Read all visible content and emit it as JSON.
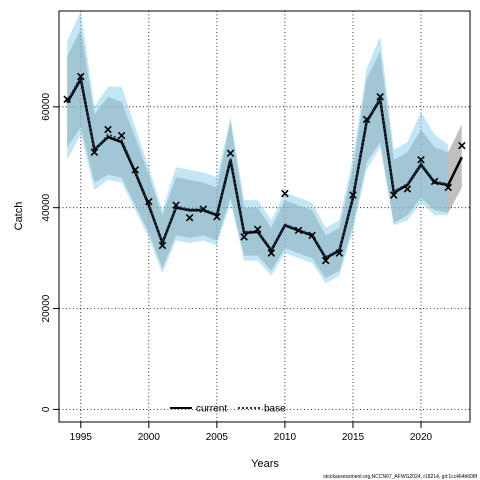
{
  "chart_data": {
    "type": "line",
    "xlabel": "Years",
    "ylabel": "Catch",
    "xlim": [
      1993.4,
      2023.6
    ],
    "ylim": [
      -2500,
      79000
    ],
    "x_ticks": [
      1995,
      2000,
      2005,
      2010,
      2015,
      2020
    ],
    "y_ticks": [
      0,
      20000,
      40000,
      60000
    ],
    "grid": true,
    "legend_position": "bottom-left",
    "legend": [
      {
        "label": "current",
        "style": "solid",
        "color": "#000000"
      },
      {
        "label": "base",
        "style": "dotted",
        "color": "#1a3a5a"
      }
    ],
    "colors": {
      "current_band": "#808080",
      "base_band": "#87ceeb",
      "base_line": "#1a3a5a",
      "current_line": "#000000"
    },
    "observed": {
      "marker": "x",
      "x": [
        1994,
        1995,
        1996,
        1997,
        1998,
        1999,
        2000,
        2001,
        2002,
        2003,
        2004,
        2005,
        2006,
        2007,
        2008,
        2009,
        2010,
        2011,
        2012,
        2013,
        2014,
        2015,
        2016,
        2017,
        2018,
        2019,
        2020,
        2021,
        2022,
        2023
      ],
      "y": [
        61500,
        66000,
        51000,
        55500,
        54300,
        47500,
        41200,
        32500,
        40500,
        38000,
        39700,
        38200,
        50800,
        34200,
        35700,
        31000,
        42800,
        35500,
        34500,
        29500,
        31000,
        42500,
        57500,
        62000,
        42500,
        43700,
        49500,
        45200,
        44000,
        52300
      ]
    },
    "series": [
      {
        "name": "current",
        "x": [
          1994,
          1995,
          1996,
          1997,
          1998,
          1999,
          2000,
          2001,
          2002,
          2003,
          2004,
          2005,
          2006,
          2007,
          2008,
          2009,
          2010,
          2011,
          2012,
          2013,
          2014,
          2015,
          2016,
          2017,
          2018,
          2019,
          2020,
          2021,
          2022,
          2023
        ],
        "y": [
          60800,
          65500,
          51500,
          54000,
          53000,
          47000,
          40500,
          33000,
          40000,
          39500,
          39500,
          38500,
          49500,
          35000,
          35200,
          31500,
          36500,
          35500,
          34500,
          30000,
          31500,
          42000,
          57000,
          61500,
          43000,
          44500,
          48500,
          45000,
          44500,
          50000
        ],
        "lower": [
          52000,
          56000,
          45000,
          46500,
          46000,
          40500,
          35000,
          28000,
          34500,
          34000,
          34500,
          33500,
          42000,
          30500,
          30500,
          27500,
          32000,
          31000,
          30000,
          26000,
          27500,
          36500,
          49000,
          53000,
          37000,
          38500,
          42000,
          39500,
          39000,
          44000
        ],
        "upper": [
          70000,
          75500,
          58500,
          62000,
          61000,
          54000,
          46500,
          38500,
          46000,
          45500,
          45000,
          44000,
          57000,
          40000,
          40000,
          36000,
          41500,
          40500,
          39500,
          34500,
          36000,
          48000,
          65500,
          71000,
          49500,
          51000,
          55500,
          52000,
          51000,
          56500
        ]
      },
      {
        "name": "base",
        "x": [
          1994,
          1995,
          1996,
          1997,
          1998,
          1999,
          2000,
          2001,
          2002,
          2003,
          2004,
          2005,
          2006,
          2007,
          2008,
          2009,
          2010,
          2011,
          2012,
          2013,
          2014,
          2015,
          2016,
          2017,
          2018,
          2019,
          2020,
          2021,
          2022
        ],
        "y": [
          61000,
          66000,
          51200,
          54500,
          53500,
          47300,
          40800,
          32800,
          40200,
          39700,
          39700,
          38700,
          49800,
          35200,
          35400,
          31700,
          36700,
          35600,
          34700,
          30200,
          31700,
          42200,
          57200,
          61800,
          43200,
          44700,
          48800,
          45200,
          44700
        ],
        "lower": [
          49500,
          54500,
          43500,
          45500,
          45000,
          39500,
          34000,
          27000,
          33500,
          33000,
          33500,
          32500,
          41000,
          29500,
          29500,
          26500,
          31000,
          30000,
          29000,
          25000,
          26500,
          35500,
          47500,
          52000,
          36500,
          37500,
          41000,
          38500,
          38500
        ],
        "upper": [
          73000,
          79000,
          60000,
          64000,
          64000,
          56000,
          48000,
          39500,
          48000,
          47500,
          47000,
          46000,
          58000,
          41500,
          41500,
          37500,
          43000,
          42000,
          41000,
          36000,
          37500,
          50000,
          67500,
          74000,
          51500,
          53000,
          59000,
          54500,
          52500
        ]
      }
    ],
    "footnote": "stockassessment.org,NCCN67_AFWG2024, r18214, git:1cc464b608f"
  }
}
